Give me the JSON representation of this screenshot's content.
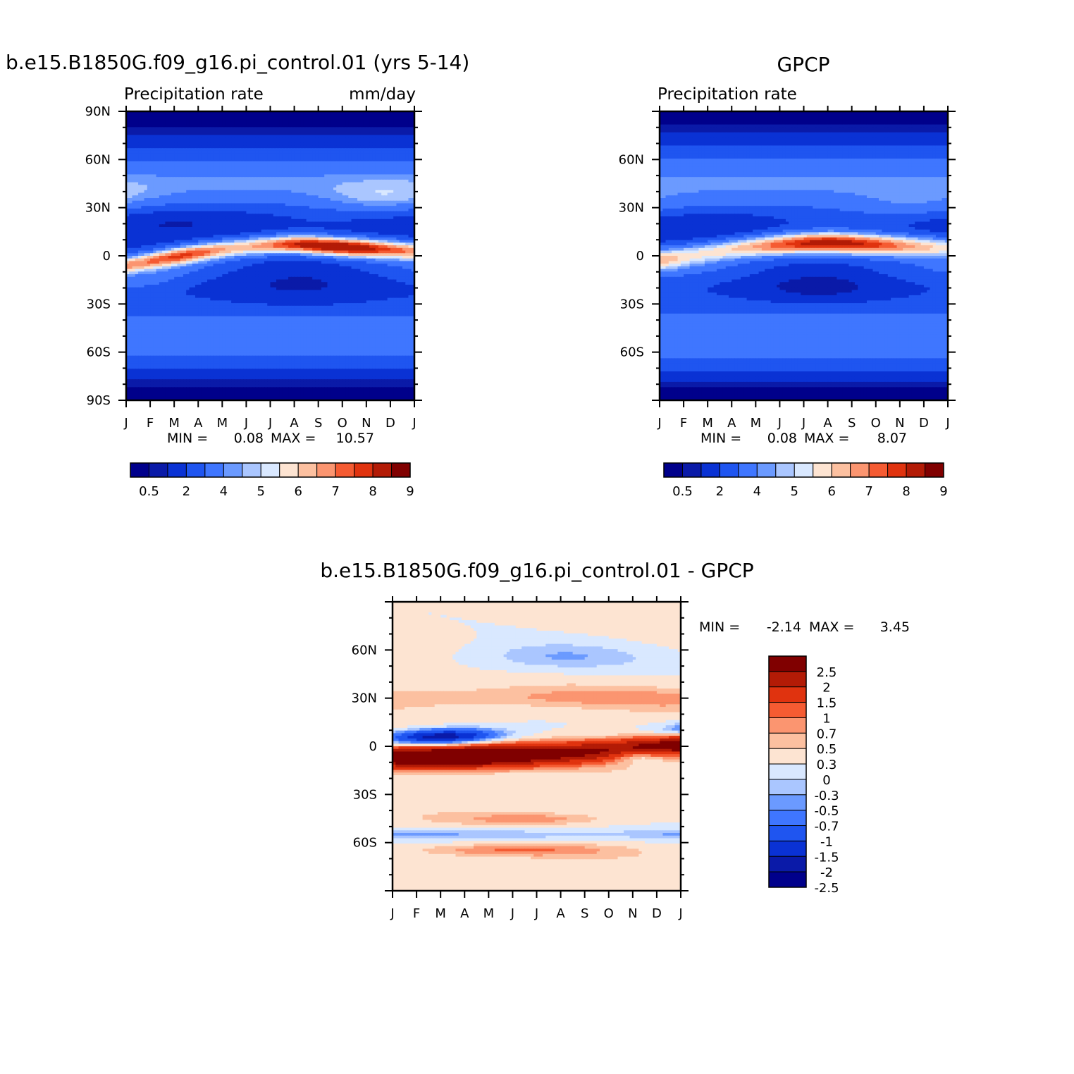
{
  "colors": {
    "abs_palette": [
      "#00008b",
      "#0a1aa8",
      "#0a32d4",
      "#1f55f0",
      "#3f76ff",
      "#6b9aff",
      "#aac6ff",
      "#d9e8ff",
      "#fde4d2",
      "#fcc0a0",
      "#fb9570",
      "#f55b32",
      "#e0330f",
      "#b31b06",
      "#800000"
    ],
    "diff_palette": [
      "#00008b",
      "#0a1aa8",
      "#0a32d4",
      "#1f55f0",
      "#3f76ff",
      "#6b9aff",
      "#aac6ff",
      "#d9e8ff",
      "#fde4d2",
      "#fcc0a0",
      "#fb9570",
      "#f55b32",
      "#e0330f",
      "#b31b06",
      "#800000"
    ]
  },
  "panels": {
    "model": {
      "title": "b.e15.B1850G.f09_g16.pi_control.01 (yrs 5-14)",
      "subtitle_left": "Precipitation rate",
      "subtitle_right": "mm/day",
      "min_label": "MIN =",
      "min_value": "0.08",
      "max_label": "MAX =",
      "max_value": "10.57"
    },
    "obs": {
      "title": "GPCP",
      "subtitle_left": "Precipitation rate",
      "min_label": "MIN =",
      "min_value": "0.08",
      "max_label": "MAX =",
      "max_value": "8.07"
    },
    "diff": {
      "title": "b.e15.B1850G.f09_g16.pi_control.01 - GPCP",
      "min_label": "MIN =",
      "min_value": "-2.14",
      "max_label": "MAX =",
      "max_value": "3.45"
    }
  },
  "chart_data": [
    {
      "type": "heatmap",
      "title": "b.e15.B1850G.f09_g16.pi_control.01 (yrs 5-14)",
      "subtitle": "Precipitation rate",
      "units": "mm/day",
      "x_ticks": [
        "J",
        "F",
        "M",
        "A",
        "M",
        "J",
        "J",
        "A",
        "S",
        "O",
        "N",
        "D",
        "J"
      ],
      "y_ticks": [
        "90N",
        "60N",
        "30N",
        "0",
        "30S",
        "60S",
        "90S"
      ],
      "ylim": [
        -90,
        90
      ],
      "levels": [
        "0.5",
        "2",
        "4",
        "5",
        "6",
        "7",
        "8",
        "9"
      ],
      "min": 0.08,
      "max": 10.57,
      "itcz": {
        "lat_start": -6,
        "lat_peak": 7,
        "lat_end": 3,
        "peak_month": "Jul-Aug",
        "max_value": 10.57
      }
    },
    {
      "type": "heatmap",
      "title": "GPCP",
      "subtitle": "Precipitation rate",
      "x_ticks": [
        "J",
        "F",
        "M",
        "A",
        "M",
        "J",
        "J",
        "A",
        "S",
        "O",
        "N",
        "D",
        "J"
      ],
      "y_ticks": [
        "60N",
        "30N",
        "0",
        "30S",
        "60S"
      ],
      "ylim": [
        -90,
        90
      ],
      "levels": [
        "0.5",
        "2",
        "4",
        "5",
        "6",
        "7",
        "8",
        "9"
      ],
      "min": 0.08,
      "max": 8.07,
      "itcz": {
        "lat_start": -2,
        "lat_peak": 8,
        "lat_end": 5,
        "peak_month": "Aug",
        "max_value": 8.07
      }
    },
    {
      "type": "heatmap",
      "title": "b.e15.B1850G.f09_g16.pi_control.01 - GPCP",
      "x_ticks": [
        "J",
        "F",
        "M",
        "A",
        "M",
        "J",
        "J",
        "A",
        "S",
        "O",
        "N",
        "D",
        "J"
      ],
      "y_ticks": [
        "60N",
        "30N",
        "0",
        "30S",
        "60S"
      ],
      "ylim": [
        -90,
        90
      ],
      "levels": [
        "2.5",
        "2",
        "1.5",
        "1",
        "0.7",
        "0.5",
        "0.3",
        "0",
        "-0.3",
        "-0.5",
        "-0.7",
        "-1",
        "-1.5",
        "-2",
        "-2.5"
      ],
      "min": -2.14,
      "max": 3.45
    }
  ]
}
